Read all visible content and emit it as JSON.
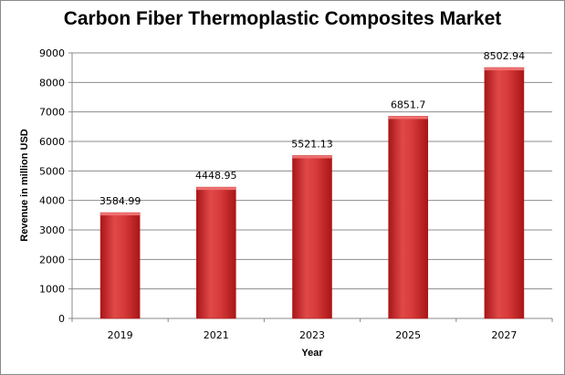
{
  "chart_data": {
    "type": "bar",
    "title": "Carbon Fiber Thermoplastic Composites Market",
    "xlabel": "Year",
    "ylabel": "Revenue in million USD",
    "categories": [
      "2019",
      "2021",
      "2023",
      "2025",
      "2027"
    ],
    "values": [
      3584.99,
      4448.95,
      5521.13,
      6851.7,
      8502.94
    ],
    "value_labels": [
      "3584.99",
      "4448.95",
      "5521.13",
      "6851.7",
      "8502.94"
    ],
    "ylim": [
      0,
      9000
    ],
    "yticks": [
      0,
      1000,
      2000,
      3000,
      4000,
      5000,
      6000,
      7000,
      8000,
      9000
    ],
    "grid": true,
    "legend": "none",
    "bar_color": "#d93a3a",
    "bar_color_dark": "#b01818"
  }
}
